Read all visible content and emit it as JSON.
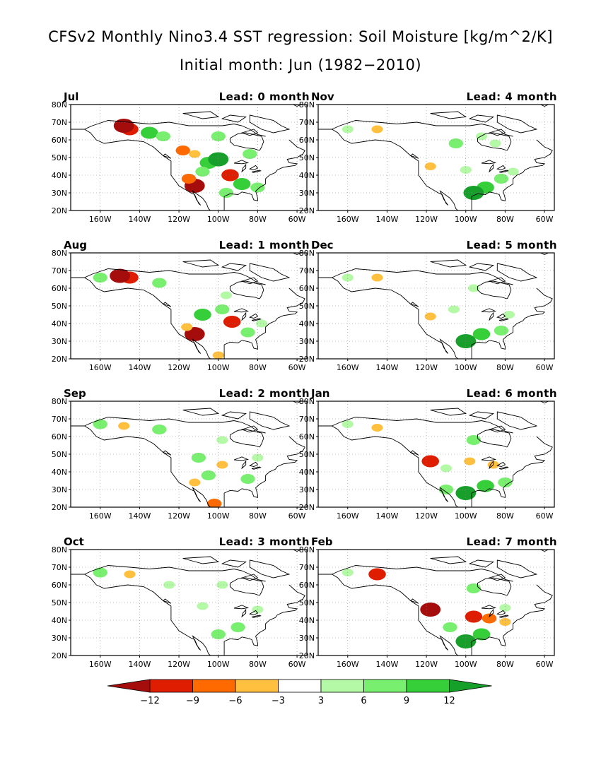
{
  "title": "CFSv2 Monthly Nino3.4 SST regression: Soil Moisture [kg/m^2/K]",
  "subtitle": "Initial month: Jun (1982−2010)",
  "chart_data": {
    "type": "heatmap",
    "variable": "Soil Moisture regression on Nino3.4 SST",
    "units": "kg/m^2/K",
    "lat_ticks": [
      "80N",
      "70N",
      "60N",
      "50N",
      "40N",
      "30N",
      "20N"
    ],
    "lon_ticks": [
      "160W",
      "140W",
      "120W",
      "100W",
      "80W",
      "60W"
    ],
    "lat_range": [
      20,
      80
    ],
    "lon_range": [
      -175,
      -55
    ],
    "grid": "dotted",
    "panels": [
      {
        "month": "Jul",
        "lead": "Lead: 0 month",
        "blobs": [
          {
            "lon": -145,
            "lat": 66,
            "v": -9
          },
          {
            "lon": -148,
            "lat": 68,
            "v": -12
          },
          {
            "lon": -135,
            "lat": 64,
            "v": 9
          },
          {
            "lon": -128,
            "lat": 62,
            "v": 6
          },
          {
            "lon": -118,
            "lat": 54,
            "v": -6
          },
          {
            "lon": -112,
            "lat": 52,
            "v": -3
          },
          {
            "lon": -105,
            "lat": 47,
            "v": 9
          },
          {
            "lon": -100,
            "lat": 49,
            "v": 12
          },
          {
            "lon": -94,
            "lat": 40,
            "v": -9
          },
          {
            "lon": -112,
            "lat": 34,
            "v": -12
          },
          {
            "lon": -115,
            "lat": 38,
            "v": -6
          },
          {
            "lon": -108,
            "lat": 42,
            "v": 6
          },
          {
            "lon": -88,
            "lat": 35,
            "v": 9
          },
          {
            "lon": -80,
            "lat": 33,
            "v": 6
          },
          {
            "lon": -84,
            "lat": 52,
            "v": 6
          },
          {
            "lon": -100,
            "lat": 62,
            "v": 6
          },
          {
            "lon": -96,
            "lat": 30,
            "v": 6
          }
        ]
      },
      {
        "month": "Nov",
        "lead": "Lead: 4 month",
        "blobs": [
          {
            "lon": -160,
            "lat": 66,
            "v": 3
          },
          {
            "lon": -145,
            "lat": 66,
            "v": -3
          },
          {
            "lon": -105,
            "lat": 58,
            "v": 6
          },
          {
            "lon": -92,
            "lat": 62,
            "v": 3
          },
          {
            "lon": -118,
            "lat": 45,
            "v": -3
          },
          {
            "lon": -100,
            "lat": 43,
            "v": 3
          },
          {
            "lon": -90,
            "lat": 33,
            "v": 9
          },
          {
            "lon": -96,
            "lat": 30,
            "v": 12
          },
          {
            "lon": -82,
            "lat": 38,
            "v": 6
          },
          {
            "lon": -76,
            "lat": 42,
            "v": 3
          },
          {
            "lon": -85,
            "lat": 58,
            "v": 3
          }
        ]
      },
      {
        "month": "Aug",
        "lead": "Lead: 1 month",
        "blobs": [
          {
            "lon": -145,
            "lat": 66,
            "v": -9
          },
          {
            "lon": -150,
            "lat": 67,
            "v": -12
          },
          {
            "lon": -160,
            "lat": 66,
            "v": 6
          },
          {
            "lon": -130,
            "lat": 63,
            "v": 6
          },
          {
            "lon": -108,
            "lat": 45,
            "v": 9
          },
          {
            "lon": -98,
            "lat": 48,
            "v": 6
          },
          {
            "lon": -93,
            "lat": 41,
            "v": -9
          },
          {
            "lon": -112,
            "lat": 34,
            "v": -12
          },
          {
            "lon": -116,
            "lat": 38,
            "v": -3
          },
          {
            "lon": -85,
            "lat": 35,
            "v": 6
          },
          {
            "lon": -78,
            "lat": 40,
            "v": 3
          },
          {
            "lon": -100,
            "lat": 22,
            "v": -3
          },
          {
            "lon": -96,
            "lat": 56,
            "v": 3
          }
        ]
      },
      {
        "month": "Dec",
        "lead": "Lead: 5 month",
        "blobs": [
          {
            "lon": -160,
            "lat": 66,
            "v": 3
          },
          {
            "lon": -145,
            "lat": 66,
            "v": -3
          },
          {
            "lon": -118,
            "lat": 44,
            "v": -3
          },
          {
            "lon": -106,
            "lat": 48,
            "v": 3
          },
          {
            "lon": -100,
            "lat": 30,
            "v": 12
          },
          {
            "lon": -92,
            "lat": 34,
            "v": 9
          },
          {
            "lon": -82,
            "lat": 36,
            "v": 6
          },
          {
            "lon": -96,
            "lat": 60,
            "v": 3
          },
          {
            "lon": -78,
            "lat": 45,
            "v": 3
          }
        ]
      },
      {
        "month": "Sep",
        "lead": "Lead: 2 month",
        "blobs": [
          {
            "lon": -160,
            "lat": 67,
            "v": 6
          },
          {
            "lon": -148,
            "lat": 66,
            "v": -3
          },
          {
            "lon": -130,
            "lat": 64,
            "v": 6
          },
          {
            "lon": -110,
            "lat": 48,
            "v": 6
          },
          {
            "lon": -98,
            "lat": 44,
            "v": -3
          },
          {
            "lon": -112,
            "lat": 34,
            "v": -3
          },
          {
            "lon": -105,
            "lat": 38,
            "v": 6
          },
          {
            "lon": -85,
            "lat": 36,
            "v": 6
          },
          {
            "lon": -102,
            "lat": 22,
            "v": -6
          },
          {
            "lon": -98,
            "lat": 58,
            "v": 3
          },
          {
            "lon": -80,
            "lat": 48,
            "v": 3
          }
        ]
      },
      {
        "month": "Jan",
        "lead": "Lead: 6 month",
        "blobs": [
          {
            "lon": -160,
            "lat": 67,
            "v": 3
          },
          {
            "lon": -145,
            "lat": 65,
            "v": -3
          },
          {
            "lon": -118,
            "lat": 46,
            "v": -9
          },
          {
            "lon": -110,
            "lat": 42,
            "v": 3
          },
          {
            "lon": -98,
            "lat": 46,
            "v": -3
          },
          {
            "lon": -86,
            "lat": 44,
            "v": -3
          },
          {
            "lon": -100,
            "lat": 28,
            "v": 12
          },
          {
            "lon": -90,
            "lat": 32,
            "v": 9
          },
          {
            "lon": -110,
            "lat": 30,
            "v": 6
          },
          {
            "lon": -80,
            "lat": 34,
            "v": 6
          },
          {
            "lon": -96,
            "lat": 58,
            "v": 6
          }
        ]
      },
      {
        "month": "Oct",
        "lead": "Lead: 3 month",
        "blobs": [
          {
            "lon": -160,
            "lat": 67,
            "v": 6
          },
          {
            "lon": -145,
            "lat": 66,
            "v": -3
          },
          {
            "lon": -125,
            "lat": 60,
            "v": 3
          },
          {
            "lon": -108,
            "lat": 48,
            "v": 3
          },
          {
            "lon": -100,
            "lat": 32,
            "v": 6
          },
          {
            "lon": -90,
            "lat": 36,
            "v": 6
          },
          {
            "lon": -98,
            "lat": 60,
            "v": 3
          },
          {
            "lon": -80,
            "lat": 46,
            "v": 3
          }
        ]
      },
      {
        "month": "Feb",
        "lead": "Lead: 7 month",
        "blobs": [
          {
            "lon": -160,
            "lat": 67,
            "v": 3
          },
          {
            "lon": -145,
            "lat": 66,
            "v": -9
          },
          {
            "lon": -118,
            "lat": 46,
            "v": -12
          },
          {
            "lon": -96,
            "lat": 42,
            "v": -9
          },
          {
            "lon": -88,
            "lat": 41,
            "v": -6
          },
          {
            "lon": -80,
            "lat": 39,
            "v": -3
          },
          {
            "lon": -100,
            "lat": 28,
            "v": 12
          },
          {
            "lon": -92,
            "lat": 32,
            "v": 9
          },
          {
            "lon": -108,
            "lat": 36,
            "v": 6
          },
          {
            "lon": -96,
            "lat": 58,
            "v": 6
          },
          {
            "lon": -80,
            "lat": 47,
            "v": 3
          }
        ]
      }
    ],
    "colorbar": {
      "levels": [
        -12,
        -9,
        -6,
        -3,
        3,
        6,
        9,
        12
      ],
      "labels": [
        "−12",
        "−9",
        "−6",
        "−3",
        "3",
        "6",
        "9",
        "12"
      ],
      "colors": [
        "#a50d0d",
        "#df1d00",
        "#ff6a00",
        "#ffbf3f",
        "#ffffff",
        "#b4f9a6",
        "#78ef6e",
        "#36cf3a",
        "#16a02a"
      ]
    }
  }
}
